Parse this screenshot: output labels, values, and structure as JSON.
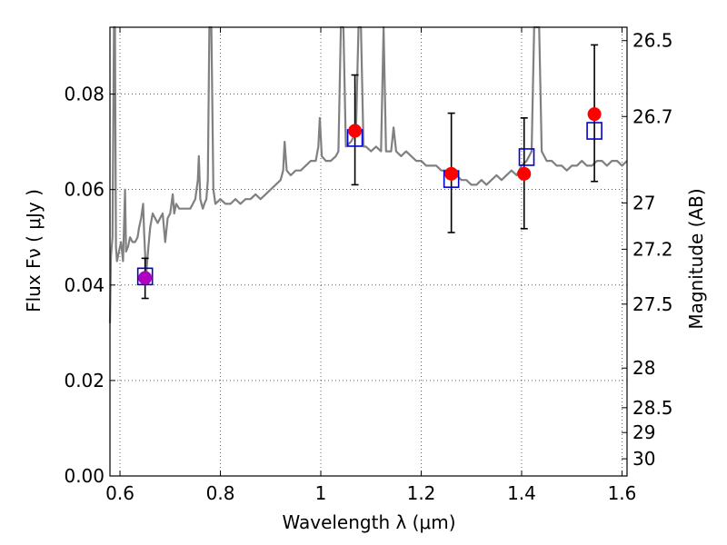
{
  "chart_data": {
    "type": "scatter",
    "xlabel": "Wavelength  λ (μm)",
    "ylabel_left": "Flux  Fν ( μJy )",
    "ylabel_right": "Magnitude (AB)",
    "xlim": [
      0.58,
      1.61
    ],
    "ylim": [
      0.0,
      0.094
    ],
    "grid": true,
    "x_ticks": [
      0.6,
      0.8,
      1.0,
      1.2,
      1.4,
      1.6
    ],
    "x_tick_labels": [
      "0.6",
      "0.8",
      "1",
      "1.2",
      "1.4",
      "1.6"
    ],
    "y_ticks": [
      0.0,
      0.02,
      0.04,
      0.06,
      0.08
    ],
    "y_tick_labels": [
      "0.00",
      "0.02",
      "0.04",
      "0.06",
      "0.08"
    ],
    "right_ticks": [
      {
        "label": "26.5",
        "flux": 0.0912
      },
      {
        "label": "26.7",
        "flux": 0.0753
      },
      {
        "label": "27",
        "flux": 0.0572
      },
      {
        "label": "27.2",
        "flux": 0.0475
      },
      {
        "label": "27.5",
        "flux": 0.036
      },
      {
        "label": "28",
        "flux": 0.0226
      },
      {
        "label": "28.5",
        "flux": 0.0143
      },
      {
        "label": "29",
        "flux": 0.0091
      },
      {
        "label": "30",
        "flux": 0.0036
      }
    ],
    "series": [
      {
        "kind": "observed",
        "color": "#ff0000",
        "points": [
          {
            "x": 0.65,
            "y": 0.0415,
            "yerr_low": 0.0372,
            "yerr_high": 0.0456
          },
          {
            "x": 1.068,
            "y": 0.0723,
            "yerr_low": 0.061,
            "yerr_high": 0.084
          },
          {
            "x": 1.26,
            "y": 0.0633,
            "yerr_low": 0.051,
            "yerr_high": 0.076
          },
          {
            "x": 1.405,
            "y": 0.0633,
            "yerr_low": 0.0518,
            "yerr_high": 0.075
          },
          {
            "x": 1.545,
            "y": 0.0758,
            "yerr_low": 0.0617,
            "yerr_high": 0.0903
          }
        ]
      },
      {
        "kind": "model",
        "color": "#0000cc",
        "points": [
          {
            "x": 0.65,
            "y": 0.0418
          },
          {
            "x": 1.068,
            "y": 0.0708
          },
          {
            "x": 1.26,
            "y": 0.0622
          },
          {
            "x": 1.41,
            "y": 0.0668
          },
          {
            "x": 1.545,
            "y": 0.0723
          }
        ]
      },
      {
        "kind": "spectrum",
        "color": "#808080",
        "points": [
          [
            0.58,
            0.032
          ],
          [
            0.582,
            0.046
          ],
          [
            0.585,
            0.05
          ],
          [
            0.588,
            0.094
          ],
          [
            0.59,
            0.094
          ],
          [
            0.592,
            0.048
          ],
          [
            0.594,
            0.045
          ],
          [
            0.598,
            0.047
          ],
          [
            0.602,
            0.049
          ],
          [
            0.606,
            0.045
          ],
          [
            0.61,
            0.06
          ],
          [
            0.612,
            0.047
          ],
          [
            0.616,
            0.048
          ],
          [
            0.62,
            0.05
          ],
          [
            0.625,
            0.049
          ],
          [
            0.63,
            0.049
          ],
          [
            0.635,
            0.05
          ],
          [
            0.638,
            0.052
          ],
          [
            0.642,
            0.054
          ],
          [
            0.646,
            0.057
          ],
          [
            0.648,
            0.051
          ],
          [
            0.652,
            0.042
          ],
          [
            0.655,
            0.046
          ],
          [
            0.66,
            0.052
          ],
          [
            0.665,
            0.055
          ],
          [
            0.67,
            0.054
          ],
          [
            0.675,
            0.053
          ],
          [
            0.68,
            0.054
          ],
          [
            0.685,
            0.055
          ],
          [
            0.69,
            0.049
          ],
          [
            0.695,
            0.054
          ],
          [
            0.7,
            0.055
          ],
          [
            0.705,
            0.059
          ],
          [
            0.708,
            0.055
          ],
          [
            0.712,
            0.057
          ],
          [
            0.718,
            0.056
          ],
          [
            0.725,
            0.056
          ],
          [
            0.73,
            0.056
          ],
          [
            0.735,
            0.056
          ],
          [
            0.74,
            0.056
          ],
          [
            0.745,
            0.057
          ],
          [
            0.75,
            0.058
          ],
          [
            0.755,
            0.062
          ],
          [
            0.757,
            0.067
          ],
          [
            0.76,
            0.058
          ],
          [
            0.765,
            0.056
          ],
          [
            0.768,
            0.057
          ],
          [
            0.772,
            0.058
          ],
          [
            0.775,
            0.062
          ],
          [
            0.778,
            0.094
          ],
          [
            0.782,
            0.094
          ],
          [
            0.786,
            0.06
          ],
          [
            0.79,
            0.057
          ],
          [
            0.8,
            0.058
          ],
          [
            0.81,
            0.057
          ],
          [
            0.82,
            0.057
          ],
          [
            0.83,
            0.058
          ],
          [
            0.84,
            0.057
          ],
          [
            0.85,
            0.058
          ],
          [
            0.86,
            0.058
          ],
          [
            0.87,
            0.059
          ],
          [
            0.88,
            0.058
          ],
          [
            0.89,
            0.059
          ],
          [
            0.9,
            0.06
          ],
          [
            0.91,
            0.061
          ],
          [
            0.92,
            0.062
          ],
          [
            0.925,
            0.064
          ],
          [
            0.928,
            0.07
          ],
          [
            0.932,
            0.064
          ],
          [
            0.94,
            0.063
          ],
          [
            0.95,
            0.064
          ],
          [
            0.96,
            0.064
          ],
          [
            0.97,
            0.065
          ],
          [
            0.98,
            0.066
          ],
          [
            0.99,
            0.066
          ],
          [
            0.995,
            0.069
          ],
          [
            0.998,
            0.075
          ],
          [
            1.002,
            0.067
          ],
          [
            1.01,
            0.066
          ],
          [
            1.02,
            0.066
          ],
          [
            1.03,
            0.067
          ],
          [
            1.035,
            0.068
          ],
          [
            1.04,
            0.094
          ],
          [
            1.045,
            0.094
          ],
          [
            1.05,
            0.069
          ],
          [
            1.06,
            0.07
          ],
          [
            1.07,
            0.072
          ],
          [
            1.075,
            0.094
          ],
          [
            1.08,
            0.094
          ],
          [
            1.085,
            0.069
          ],
          [
            1.09,
            0.069
          ],
          [
            1.1,
            0.068
          ],
          [
            1.11,
            0.069
          ],
          [
            1.12,
            0.068
          ],
          [
            1.125,
            0.094
          ],
          [
            1.13,
            0.068
          ],
          [
            1.14,
            0.068
          ],
          [
            1.145,
            0.073
          ],
          [
            1.15,
            0.068
          ],
          [
            1.16,
            0.067
          ],
          [
            1.17,
            0.068
          ],
          [
            1.18,
            0.067
          ],
          [
            1.19,
            0.066
          ],
          [
            1.2,
            0.066
          ],
          [
            1.21,
            0.065
          ],
          [
            1.22,
            0.065
          ],
          [
            1.23,
            0.065
          ],
          [
            1.24,
            0.064
          ],
          [
            1.25,
            0.064
          ],
          [
            1.26,
            0.063
          ],
          [
            1.27,
            0.063
          ],
          [
            1.28,
            0.062
          ],
          [
            1.29,
            0.062
          ],
          [
            1.3,
            0.061
          ],
          [
            1.31,
            0.061
          ],
          [
            1.32,
            0.062
          ],
          [
            1.33,
            0.061
          ],
          [
            1.34,
            0.062
          ],
          [
            1.35,
            0.063
          ],
          [
            1.36,
            0.062
          ],
          [
            1.37,
            0.063
          ],
          [
            1.38,
            0.064
          ],
          [
            1.39,
            0.063
          ],
          [
            1.4,
            0.065
          ],
          [
            1.41,
            0.066
          ],
          [
            1.42,
            0.068
          ],
          [
            1.425,
            0.094
          ],
          [
            1.43,
            0.094
          ],
          [
            1.435,
            0.094
          ],
          [
            1.44,
            0.068
          ],
          [
            1.45,
            0.066
          ],
          [
            1.46,
            0.066
          ],
          [
            1.47,
            0.065
          ],
          [
            1.48,
            0.065
          ],
          [
            1.49,
            0.064
          ],
          [
            1.5,
            0.065
          ],
          [
            1.51,
            0.065
          ],
          [
            1.52,
            0.066
          ],
          [
            1.53,
            0.065
          ],
          [
            1.54,
            0.065
          ],
          [
            1.55,
            0.066
          ],
          [
            1.56,
            0.066
          ],
          [
            1.57,
            0.065
          ],
          [
            1.58,
            0.066
          ],
          [
            1.59,
            0.066
          ],
          [
            1.6,
            0.065
          ],
          [
            1.61,
            0.066
          ]
        ]
      }
    ]
  }
}
